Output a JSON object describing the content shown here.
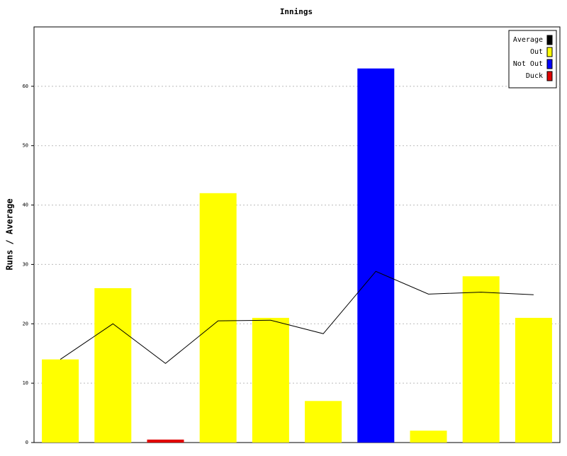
{
  "chart_data": {
    "type": "bar",
    "title": "Innings",
    "y_label": "Runs / Average",
    "categories": [
      null,
      null,
      null,
      null,
      null,
      null,
      null,
      null,
      null,
      null
    ],
    "ylim": [
      0,
      70
    ],
    "yticks": [
      0,
      10,
      20,
      30,
      40,
      50,
      60
    ],
    "grid": true,
    "legend": "top-right",
    "series": [
      {
        "name": "Average",
        "color": "#000000",
        "type": "line",
        "values": [
          14,
          20,
          13.33,
          20.5,
          20.6,
          18.33,
          28.83,
          25,
          25.33,
          24.89
        ]
      },
      {
        "name": "Out",
        "color": "#ffff00",
        "values": [
          14,
          26,
          null,
          42,
          21,
          7,
          null,
          2,
          28,
          21
        ]
      },
      {
        "name": "Not Out",
        "color": "#0000ff",
        "values": [
          null,
          null,
          null,
          null,
          null,
          null,
          63,
          null,
          null,
          null
        ]
      },
      {
        "name": "Duck",
        "color": "#e00000",
        "values": [
          null,
          null,
          0.5,
          null,
          null,
          null,
          null,
          null,
          null,
          null
        ]
      }
    ]
  }
}
